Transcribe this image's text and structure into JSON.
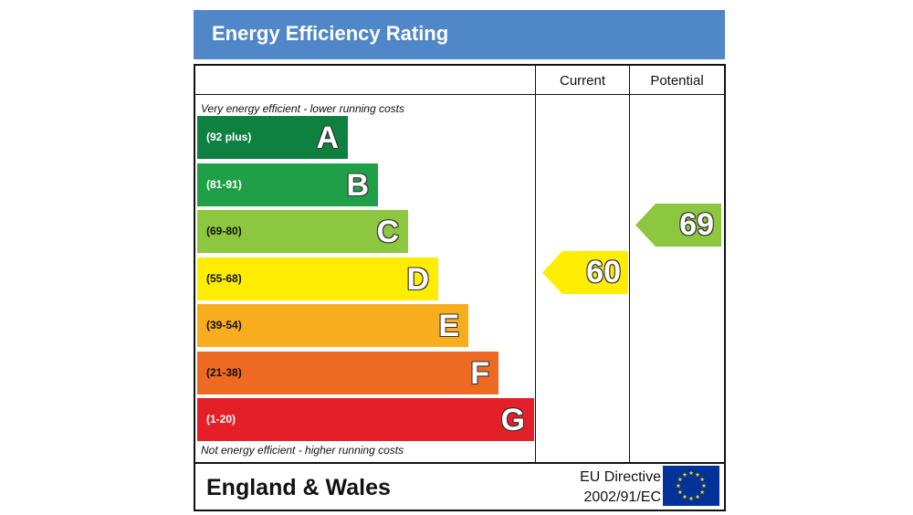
{
  "header": {
    "title": "Energy Efficiency Rating"
  },
  "columns": {
    "current": "Current",
    "potential": "Potential"
  },
  "notes": {
    "top": "Very energy efficient - lower running costs",
    "bottom": "Not energy efficient - higher running costs"
  },
  "chart_data": {
    "type": "bar",
    "categories": [
      "A",
      "B",
      "C",
      "D",
      "E",
      "F",
      "G"
    ],
    "bands": [
      {
        "letter": "A",
        "range": "(92 plus)",
        "color": "#0e8140",
        "text_color": "#ffffff"
      },
      {
        "letter": "B",
        "range": "(81-91)",
        "color": "#20a046",
        "text_color": "#ffffff"
      },
      {
        "letter": "C",
        "range": "(69-80)",
        "color": "#8dc63f",
        "text_color": "#111111"
      },
      {
        "letter": "D",
        "range": "(55-68)",
        "color": "#ffed00",
        "text_color": "#111111"
      },
      {
        "letter": "E",
        "range": "(39-54)",
        "color": "#f7ad1e",
        "text_color": "#111111"
      },
      {
        "letter": "F",
        "range": "(21-38)",
        "color": "#ee6a23",
        "text_color": "#111111"
      },
      {
        "letter": "G",
        "range": "(1-20)",
        "color": "#e51f27",
        "text_color": "#ffffff"
      }
    ],
    "current": {
      "value": 60,
      "band": "D",
      "color": "#ffed00"
    },
    "potential": {
      "value": 69,
      "band": "C",
      "color": "#8dc63f"
    }
  },
  "footer": {
    "region": "England & Wales",
    "directive_line1": "EU Directive",
    "directive_line2": "2002/91/EC"
  }
}
